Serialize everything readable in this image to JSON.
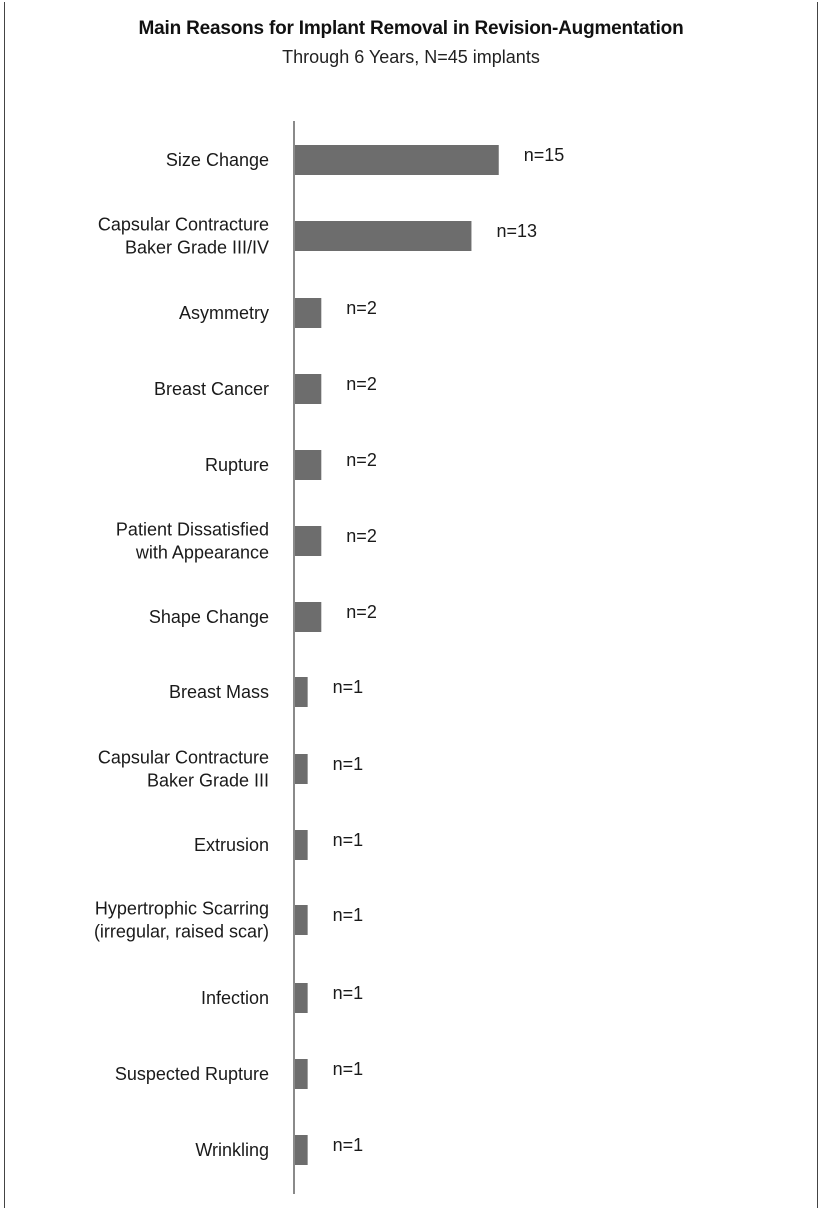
{
  "chart_data": {
    "type": "bar",
    "orientation": "horizontal",
    "title": "Main Reasons for Implant Removal in Revision-Augmentation",
    "subtitle": "Through 6 Years, N=45 implants",
    "xlabel": "",
    "ylabel": "",
    "grid": false,
    "bar_color": "#6d6d6d",
    "axis_color": "#8a8a8a",
    "categories": [
      [
        "Size Change"
      ],
      [
        "Capsular Contracture",
        "Baker Grade III/IV"
      ],
      [
        "Asymmetry"
      ],
      [
        "Breast Cancer"
      ],
      [
        "Rupture"
      ],
      [
        "Patient Dissatisfied",
        "with Appearance"
      ],
      [
        "Shape Change"
      ],
      [
        "Breast Mass"
      ],
      [
        "Capsular Contracture",
        "Baker Grade III"
      ],
      [
        "Extrusion"
      ],
      [
        "Hypertrophic Scarring",
        "(irregular, raised scar)"
      ],
      [
        "Infection"
      ],
      [
        "Suspected Rupture"
      ],
      [
        "Wrinkling"
      ]
    ],
    "values": [
      15,
      13,
      2,
      2,
      2,
      2,
      2,
      1,
      1,
      1,
      1,
      1,
      1,
      1
    ],
    "data_labels": [
      "n=15",
      "n=13",
      "n=2",
      "n=2",
      "n=2",
      "n=2",
      "n=2",
      "n=1",
      "n=1",
      "n=1",
      "n=1",
      "n=1",
      "n=1",
      "n=1"
    ]
  }
}
